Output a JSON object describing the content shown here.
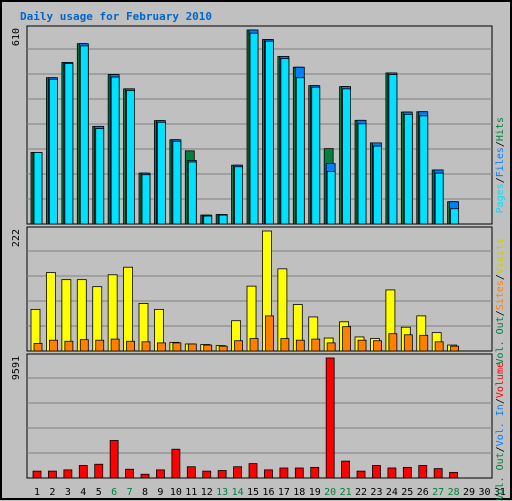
{
  "title": "Daily usage for February 2010",
  "colors": {
    "hits": "#008040",
    "files": "#0080ff",
    "pages": "#00e0ff",
    "visits": "#ffff00",
    "sites": "#ff8000",
    "volume": "#ff0000",
    "vol_in": "#0080ff",
    "vol_out": "#008040",
    "day_weekday": "#000000",
    "day_weekend": "#008040"
  },
  "legend_top": {
    "pages": "Pages",
    "files": "Files",
    "hits": "Hits",
    "sep": "/"
  },
  "legend_mid": {
    "visits": "Visits",
    "sites": "Sites",
    "kb_out": "Vol. Out",
    "sep": "/"
  },
  "legend_bot": {
    "volume": "Volume",
    "kb_in": "Vol. In",
    "kb_out": "Vol. Out",
    "sep": "/"
  },
  "chart_data": [
    {
      "type": "bar",
      "panel": "top",
      "ymax_label": "610",
      "ylim": [
        0,
        610
      ],
      "categories": [
        "1",
        "2",
        "3",
        "4",
        "5",
        "6",
        "7",
        "8",
        "9",
        "10",
        "11",
        "12",
        "13",
        "14",
        "15",
        "16",
        "17",
        "18",
        "19",
        "20",
        "21",
        "22",
        "23",
        "24",
        "25",
        "26",
        "27",
        "28",
        "29",
        "30",
        "31"
      ],
      "series": [
        {
          "name": "Hits",
          "values": [
            225,
            460,
            508,
            567,
            307,
            470,
            425,
            160,
            325,
            265,
            230,
            28,
            30,
            185,
            610,
            580,
            527,
            493,
            435,
            237,
            432,
            326,
            255,
            475,
            352,
            353,
            170,
            70,
            0,
            0,
            0
          ]
        },
        {
          "name": "Files",
          "values": [
            225,
            460,
            508,
            567,
            307,
            470,
            425,
            160,
            325,
            265,
            200,
            28,
            30,
            185,
            610,
            580,
            527,
            493,
            435,
            190,
            432,
            326,
            255,
            475,
            352,
            353,
            170,
            70,
            0,
            0,
            0
          ]
        },
        {
          "name": "Pages",
          "values": [
            225,
            455,
            505,
            560,
            300,
            462,
            420,
            155,
            320,
            260,
            195,
            25,
            28,
            180,
            600,
            575,
            520,
            460,
            430,
            165,
            425,
            315,
            245,
            470,
            345,
            340,
            160,
            48,
            0,
            0,
            0
          ]
        }
      ]
    },
    {
      "type": "bar",
      "panel": "middle",
      "ymax_label": "222",
      "ylim": [
        0,
        222
      ],
      "categories": [
        "1",
        "2",
        "3",
        "4",
        "5",
        "6",
        "7",
        "8",
        "9",
        "10",
        "11",
        "12",
        "13",
        "14",
        "15",
        "16",
        "17",
        "18",
        "19",
        "20",
        "21",
        "22",
        "23",
        "24",
        "25",
        "26",
        "27",
        "28",
        "29",
        "30",
        "31"
      ],
      "series": [
        {
          "name": "Visits",
          "values": [
            77,
            145,
            132,
            132,
            119,
            141,
            155,
            88,
            77,
            16,
            13,
            12,
            10,
            56,
            120,
            222,
            152,
            86,
            63,
            24,
            54,
            26,
            23,
            113,
            44,
            65,
            34,
            11,
            0,
            0,
            0
          ]
        },
        {
          "name": "Sites",
          "values": [
            14,
            20,
            18,
            21,
            20,
            22,
            18,
            17,
            15,
            15,
            13,
            11,
            9,
            19,
            23,
            65,
            23,
            20,
            22,
            15,
            45,
            20,
            19,
            32,
            30,
            29,
            17,
            9,
            0,
            0,
            0
          ]
        }
      ]
    },
    {
      "type": "bar",
      "panel": "bottom",
      "ymax_label": "9591",
      "ylim": [
        0,
        9591
      ],
      "categories": [
        "1",
        "2",
        "3",
        "4",
        "5",
        "6",
        "7",
        "8",
        "9",
        "10",
        "11",
        "12",
        "13",
        "14",
        "15",
        "16",
        "17",
        "18",
        "19",
        "20",
        "21",
        "22",
        "23",
        "24",
        "25",
        "26",
        "27",
        "28",
        "29",
        "30",
        "31"
      ],
      "series": [
        {
          "name": "Volume",
          "values": [
            550,
            550,
            650,
            1000,
            1100,
            3000,
            700,
            300,
            650,
            2300,
            900,
            550,
            600,
            900,
            1150,
            650,
            800,
            800,
            850,
            9591,
            1350,
            550,
            1000,
            800,
            850,
            1000,
            750,
            450,
            0,
            0,
            0
          ]
        }
      ]
    }
  ],
  "x_axis": {
    "labels": [
      "1",
      "2",
      "3",
      "4",
      "5",
      "6",
      "7",
      "8",
      "9",
      "10",
      "11",
      "12",
      "13",
      "14",
      "15",
      "16",
      "17",
      "18",
      "19",
      "20",
      "21",
      "22",
      "23",
      "24",
      "25",
      "26",
      "27",
      "28",
      "29",
      "30",
      "31"
    ],
    "weekend": [
      6,
      7,
      13,
      14,
      20,
      21,
      27,
      28
    ]
  }
}
